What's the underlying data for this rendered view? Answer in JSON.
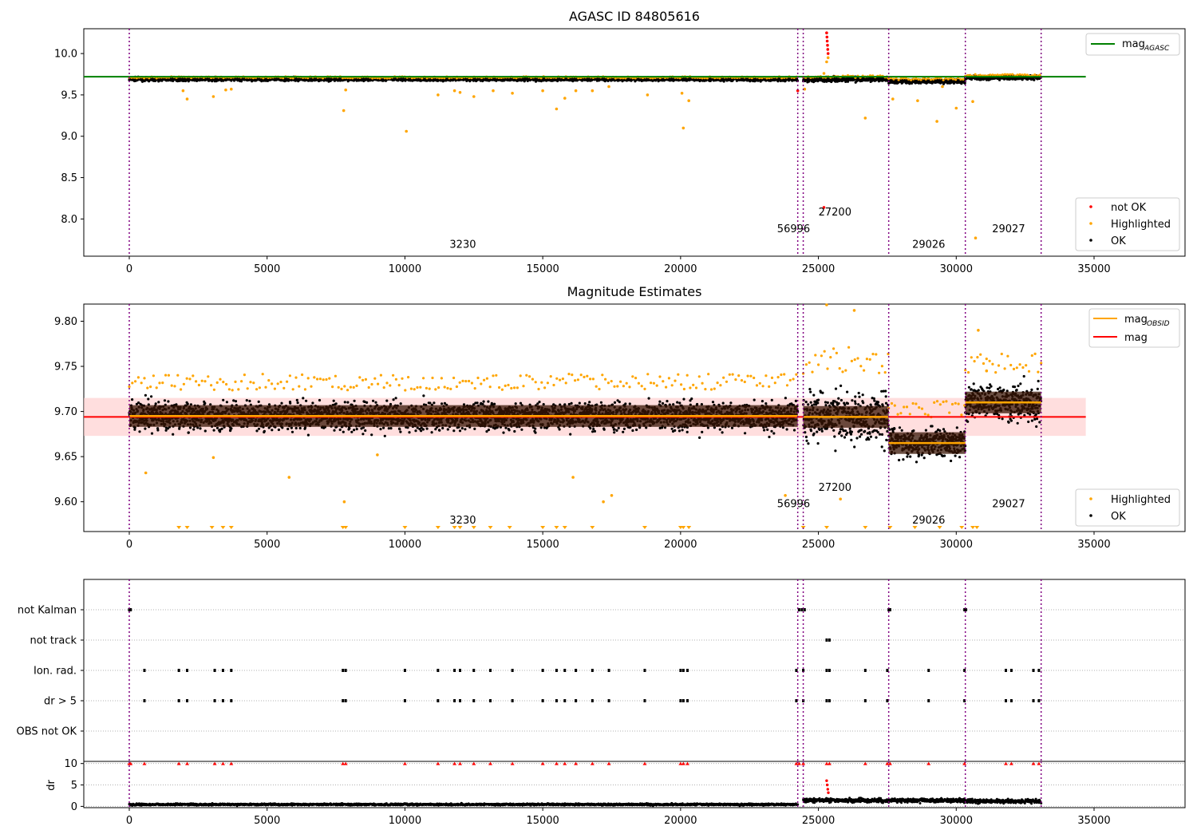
{
  "colors": {
    "ok": "#000000",
    "highlighted": "#ffa500",
    "not_ok": "#ff0000",
    "agasc_line": "#008000",
    "mag_line": "#ff0000",
    "mag_obsid": "#ffa500",
    "mag_band": "#ffc8c8",
    "obsid_boundary": "#800080",
    "grid": "#b0b0b0"
  },
  "chart_data": [
    {
      "type": "scatter",
      "title": "AGASC ID 84805616",
      "xlim": [
        -1650,
        38300
      ],
      "ylim": [
        7.55,
        10.3
      ],
      "x_ticks": [
        0,
        5000,
        10000,
        15000,
        20000,
        25000,
        30000,
        35000
      ],
      "y_ticks": [
        8.0,
        8.5,
        9.0,
        9.5,
        10.0
      ],
      "y_tick_labels": [
        "8.0",
        "8.5",
        "9.0",
        "9.5",
        "10.0"
      ],
      "legend": {
        "placement": "top-right",
        "entries": [
          {
            "label": "mag",
            "subscript": "AGASC",
            "kind": "line",
            "color": "#008000"
          }
        ]
      },
      "legend2": {
        "placement": "bottom-right",
        "entries": [
          {
            "label": "not OK",
            "kind": "dot",
            "color": "#ff0000"
          },
          {
            "label": "Highlighted",
            "kind": "dot",
            "color": "#ffa500"
          },
          {
            "label": "OK",
            "kind": "dot",
            "color": "#000000"
          }
        ]
      },
      "mag_agasc": 9.72,
      "mag_agasc_xrange": [
        -1650,
        34700
      ],
      "obsid_boundaries": [
        0,
        24250,
        24450,
        27550,
        30330,
        33080
      ],
      "obsid_labels": [
        {
          "text": "3230",
          "x": 12100,
          "y": 7.65
        },
        {
          "text": "56996",
          "x": 24100,
          "y": 7.84
        },
        {
          "text": "27200",
          "x": 25600,
          "y": 8.04
        },
        {
          "text": "29026",
          "x": 29000,
          "y": 7.65
        },
        {
          "text": "29027",
          "x": 31900,
          "y": 7.84
        }
      ],
      "segments": [
        {
          "x": [
            0,
            24250
          ],
          "center": 9.69,
          "spread": 0.04
        },
        {
          "x": [
            24450,
            27550
          ],
          "center": 9.69,
          "spread": 0.06
        },
        {
          "x": [
            27550,
            30330
          ],
          "center": 9.665,
          "spread": 0.05
        },
        {
          "x": [
            30330,
            33080
          ],
          "center": 9.71,
          "spread": 0.05
        }
      ],
      "highlighted_points": [
        [
          1950,
          9.55
        ],
        [
          2100,
          9.45
        ],
        [
          3050,
          9.48
        ],
        [
          3500,
          9.56
        ],
        [
          3700,
          9.57
        ],
        [
          7780,
          9.31
        ],
        [
          7850,
          9.56
        ],
        [
          10050,
          9.06
        ],
        [
          11200,
          9.5
        ],
        [
          11800,
          9.55
        ],
        [
          12000,
          9.53
        ],
        [
          12500,
          9.48
        ],
        [
          13200,
          9.55
        ],
        [
          13900,
          9.52
        ],
        [
          15000,
          9.55
        ],
        [
          15500,
          9.33
        ],
        [
          15800,
          9.46
        ],
        [
          16200,
          9.55
        ],
        [
          16800,
          9.55
        ],
        [
          17400,
          9.6
        ],
        [
          18800,
          9.5
        ],
        [
          20050,
          9.52
        ],
        [
          20100,
          9.1
        ],
        [
          20300,
          9.43
        ],
        [
          24500,
          9.57
        ],
        [
          25200,
          9.76
        ],
        [
          25300,
          9.9
        ],
        [
          25350,
          9.95
        ],
        [
          26700,
          9.22
        ],
        [
          27700,
          9.45
        ],
        [
          28600,
          9.43
        ],
        [
          29300,
          9.18
        ],
        [
          29500,
          9.6
        ],
        [
          30000,
          9.34
        ],
        [
          30600,
          9.42
        ],
        [
          30700,
          7.77
        ]
      ],
      "not_ok_points": [
        [
          24250,
          9.55
        ],
        [
          25300,
          10.25
        ],
        [
          25310,
          10.2
        ],
        [
          25320,
          10.15
        ],
        [
          25330,
          10.1
        ],
        [
          25340,
          10.05
        ],
        [
          25350,
          10.0
        ],
        [
          25200,
          8.14
        ]
      ]
    },
    {
      "type": "scatter",
      "title": "Magnitude Estimates",
      "xlim": [
        -1650,
        38300
      ],
      "ylim": [
        9.567,
        9.819
      ],
      "x_ticks": [
        0,
        5000,
        10000,
        15000,
        20000,
        25000,
        30000,
        35000
      ],
      "y_ticks": [
        9.6,
        9.65,
        9.7,
        9.75,
        9.8
      ],
      "y_tick_labels": [
        "9.60",
        "9.65",
        "9.70",
        "9.75",
        "9.80"
      ],
      "legend": {
        "placement": "top-right",
        "entries": [
          {
            "label": "mag",
            "subscript": "OBSID",
            "kind": "line",
            "color": "#ffa500"
          },
          {
            "label": "mag",
            "kind": "line",
            "color": "#ff0000"
          }
        ]
      },
      "legend2": {
        "placement": "bottom-right",
        "entries": [
          {
            "label": "Highlighted",
            "kind": "dot",
            "color": "#ffa500"
          },
          {
            "label": "OK",
            "kind": "dot",
            "color": "#000000"
          }
        ]
      },
      "mag": 9.694,
      "mag_band": [
        9.673,
        9.715
      ],
      "mag_xrange": [
        -1650,
        34700
      ],
      "mag_obsid": [
        {
          "x": [
            0,
            24250
          ],
          "value": 9.695
        },
        {
          "x": [
            24450,
            27550
          ],
          "value": 9.694
        },
        {
          "x": [
            27550,
            30330
          ],
          "value": 9.665
        },
        {
          "x": [
            30330,
            33080
          ],
          "value": 9.71
        }
      ],
      "obsid_boundaries": [
        0,
        24250,
        24450,
        27550,
        30330,
        33080
      ],
      "obsid_labels": [
        {
          "text": "3230",
          "x": 12100,
          "y": 9.576
        },
        {
          "text": "56996",
          "x": 24100,
          "y": 9.594
        },
        {
          "text": "27200",
          "x": 25600,
          "y": 9.612
        },
        {
          "text": "29026",
          "x": 29000,
          "y": 9.576
        },
        {
          "text": "29027",
          "x": 31900,
          "y": 9.594
        }
      ],
      "segments": [
        {
          "x": [
            0,
            24250
          ],
          "center": 9.695,
          "spread": 0.03
        },
        {
          "x": [
            24450,
            27550
          ],
          "center": 9.694,
          "spread": 0.05
        },
        {
          "x": [
            27550,
            30330
          ],
          "center": 9.665,
          "spread": 0.03
        },
        {
          "x": [
            30330,
            33080
          ],
          "center": 9.71,
          "spread": 0.035
        }
      ],
      "highlighted_points": [
        [
          600,
          9.632
        ],
        [
          3050,
          9.649
        ],
        [
          5800,
          9.627
        ],
        [
          7800,
          9.6
        ],
        [
          9000,
          9.652
        ],
        [
          16100,
          9.627
        ],
        [
          17200,
          9.6
        ],
        [
          17500,
          9.607
        ],
        [
          23800,
          9.607
        ],
        [
          25300,
          9.82
        ],
        [
          25800,
          9.603
        ],
        [
          26300,
          9.812
        ],
        [
          30800,
          9.79
        ],
        [
          31100,
          9.745
        ]
      ],
      "below_range_marks": [
        1800,
        2100,
        3000,
        3400,
        3700,
        7750,
        7850,
        10000,
        11200,
        11800,
        12000,
        12500,
        13100,
        13800,
        15000,
        15500,
        15800,
        16800,
        18700,
        20000,
        20100,
        20300,
        24450,
        25300,
        26700,
        27600,
        28500,
        29400,
        30200,
        30600,
        30750
      ]
    },
    {
      "type": "scatter",
      "title": "",
      "xlim": [
        -1650,
        38300
      ],
      "flag_rows": [
        "not Kalman",
        "not track",
        "Ion. rad.",
        "dr > 5",
        "OBS not OK"
      ],
      "x_ticks": [
        0,
        5000,
        10000,
        15000,
        20000,
        25000,
        30000,
        35000
      ],
      "obsid_boundaries": [
        0,
        24250,
        24450,
        27550,
        30330,
        33080
      ],
      "flags": {
        "not Kalman": [
          0,
          50,
          24300,
          24400,
          24500,
          27550,
          27600,
          30300,
          30350
        ],
        "not track": [
          25300,
          25400
        ],
        "Ion. rad.": [
          550,
          1800,
          2100,
          3100,
          3400,
          3700,
          7750,
          7850,
          10000,
          11200,
          11800,
          12000,
          12500,
          13100,
          13900,
          15000,
          15500,
          15800,
          16200,
          16800,
          17400,
          18700,
          20000,
          20100,
          20250,
          24200,
          24450,
          25300,
          25400,
          26700,
          27500,
          29000,
          30300,
          31800,
          32000,
          32800,
          33000
        ],
        "dr > 5": [
          550,
          1800,
          2100,
          3100,
          3400,
          3700,
          7750,
          7850,
          10000,
          11200,
          11800,
          12000,
          12500,
          13100,
          13900,
          15000,
          15500,
          15800,
          16200,
          16800,
          17400,
          18700,
          20000,
          20100,
          20250,
          24200,
          24450,
          25300,
          25400,
          26700,
          27500,
          29000,
          30300,
          31800,
          32000,
          32800,
          33000
        ],
        "OBS not OK": []
      }
    },
    {
      "type": "scatter",
      "title": "",
      "xlim": [
        -1650,
        38300
      ],
      "ylim": [
        -0.3,
        10.5
      ],
      "ylabel": "dr",
      "x_ticks": [
        0,
        5000,
        10000,
        15000,
        20000,
        25000,
        30000,
        35000
      ],
      "x_tick_labels": [
        "0",
        "5000",
        "10000",
        "15000",
        "20000",
        "25000",
        "30000",
        "35000"
      ],
      "y_ticks": [
        0,
        5,
        10
      ],
      "y_tick_labels": [
        "0",
        "5",
        "10"
      ],
      "obsid_boundaries": [
        0,
        24250,
        24450,
        27550,
        30330,
        33080
      ],
      "segments": [
        {
          "x": [
            0,
            24250
          ],
          "center": 0.45,
          "spread": 0.4
        },
        {
          "x": [
            24450,
            27550
          ],
          "center": 1.4,
          "spread": 0.9
        },
        {
          "x": [
            27550,
            30330
          ],
          "center": 1.4,
          "spread": 0.9
        },
        {
          "x": [
            30330,
            33080
          ],
          "center": 1.2,
          "spread": 0.9
        }
      ],
      "clipped_marks": [
        0,
        50,
        550,
        1800,
        2100,
        3100,
        3400,
        3700,
        7750,
        7850,
        10000,
        11200,
        11800,
        12000,
        12500,
        13100,
        13900,
        15000,
        15500,
        15800,
        16200,
        16800,
        17400,
        18700,
        20000,
        20100,
        20250,
        24200,
        24300,
        24450,
        25300,
        25400,
        26700,
        27500,
        27600,
        29000,
        30300,
        31800,
        32000,
        32800,
        33000
      ],
      "spike_points": [
        [
          25300,
          6.0
        ],
        [
          25320,
          5.0
        ],
        [
          25340,
          4.0
        ],
        [
          25360,
          3.2
        ]
      ]
    }
  ]
}
